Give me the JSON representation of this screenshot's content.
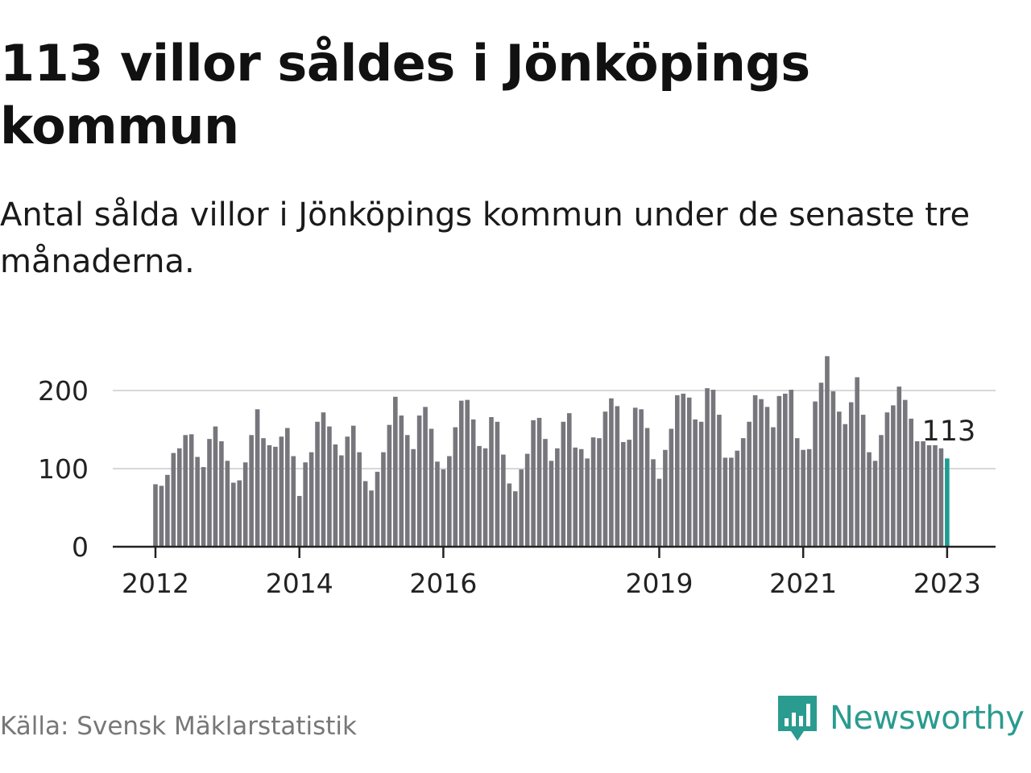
{
  "title": "113 villor såldes i Jönköpings kommun",
  "subtitle": "Antal sålda villor i Jönköpings kommun under de senaste tre månaderna.",
  "source": "Källa: Svensk Mäklarstatistik",
  "brand": {
    "name": "Newsworthy",
    "icon": "newsworthy-logo-icon",
    "color": "#2a9b8f"
  },
  "colors": {
    "bar": "#76767c",
    "highlight": "#1f9c90",
    "grid": "#d8d8d8",
    "axis": "#222222"
  },
  "chart_data": {
    "type": "bar",
    "title": "113 villor såldes i Jönköpings kommun",
    "xlabel": "",
    "ylabel": "",
    "ylim": [
      0,
      250
    ],
    "yticks": [
      0,
      100,
      200
    ],
    "xtick_labels": [
      {
        "label": "2012",
        "index": 0
      },
      {
        "label": "2014",
        "index": 24
      },
      {
        "label": "2016",
        "index": 48
      },
      {
        "label": "2019",
        "index": 84
      },
      {
        "label": "2021",
        "index": 108
      },
      {
        "label": "2023",
        "index": 132
      }
    ],
    "highlight_index": 132,
    "highlight_label": "113",
    "categories": [
      "2012-01",
      "2012-02",
      "2012-03",
      "2012-04",
      "2012-05",
      "2012-06",
      "2012-07",
      "2012-08",
      "2012-09",
      "2012-10",
      "2012-11",
      "2012-12",
      "2013-01",
      "2013-02",
      "2013-03",
      "2013-04",
      "2013-05",
      "2013-06",
      "2013-07",
      "2013-08",
      "2013-09",
      "2013-10",
      "2013-11",
      "2013-12",
      "2014-01",
      "2014-02",
      "2014-03",
      "2014-04",
      "2014-05",
      "2014-06",
      "2014-07",
      "2014-08",
      "2014-09",
      "2014-10",
      "2014-11",
      "2014-12",
      "2015-01",
      "2015-02",
      "2015-03",
      "2015-04",
      "2015-05",
      "2015-06",
      "2015-07",
      "2015-08",
      "2015-09",
      "2015-10",
      "2015-11",
      "2015-12",
      "2016-01",
      "2016-02",
      "2016-03",
      "2016-04",
      "2016-05",
      "2016-06",
      "2016-07",
      "2016-08",
      "2016-09",
      "2016-10",
      "2016-11",
      "2016-12",
      "2017-01",
      "2017-02",
      "2017-03",
      "2017-04",
      "2017-05",
      "2017-06",
      "2017-07",
      "2017-08",
      "2017-09",
      "2017-10",
      "2017-11",
      "2017-12",
      "2018-01",
      "2018-02",
      "2018-03",
      "2018-04",
      "2018-05",
      "2018-06",
      "2018-07",
      "2018-08",
      "2018-09",
      "2018-10",
      "2018-11",
      "2018-12",
      "2019-01",
      "2019-02",
      "2019-03",
      "2019-04",
      "2019-05",
      "2019-06",
      "2019-07",
      "2019-08",
      "2019-09",
      "2019-10",
      "2019-11",
      "2019-12",
      "2020-01",
      "2020-02",
      "2020-03",
      "2020-04",
      "2020-05",
      "2020-06",
      "2020-07",
      "2020-08",
      "2020-09",
      "2020-10",
      "2020-11",
      "2020-12",
      "2021-01",
      "2021-02",
      "2021-03",
      "2021-04",
      "2021-05",
      "2021-06",
      "2021-07",
      "2021-08",
      "2021-09",
      "2021-10",
      "2021-11",
      "2021-12",
      "2022-01",
      "2022-02",
      "2022-03",
      "2022-04",
      "2022-05",
      "2022-06",
      "2022-07",
      "2022-08",
      "2022-09",
      "2022-10",
      "2022-11",
      "2022-12",
      "2023-01"
    ],
    "values": [
      80,
      78,
      92,
      120,
      126,
      143,
      144,
      115,
      102,
      138,
      154,
      135,
      110,
      82,
      85,
      108,
      143,
      176,
      139,
      130,
      128,
      141,
      152,
      116,
      65,
      108,
      121,
      160,
      172,
      154,
      131,
      117,
      141,
      155,
      121,
      84,
      72,
      96,
      121,
      156,
      192,
      168,
      143,
      125,
      168,
      179,
      151,
      109,
      99,
      116,
      153,
      187,
      188,
      163,
      129,
      126,
      166,
      160,
      118,
      81,
      71,
      99,
      119,
      162,
      165,
      138,
      110,
      126,
      160,
      171,
      127,
      125,
      113,
      140,
      139,
      173,
      190,
      180,
      134,
      137,
      178,
      176,
      152,
      112,
      87,
      124,
      151,
      194,
      196,
      191,
      163,
      160,
      203,
      201,
      169,
      114,
      114,
      123,
      139,
      160,
      194,
      189,
      179,
      153,
      193,
      196,
      201,
      139,
      124,
      125,
      186,
      210,
      244,
      199,
      173,
      157,
      185,
      217,
      169,
      121,
      110,
      143,
      172,
      181,
      205,
      188,
      164,
      135,
      135,
      130,
      130,
      126,
      113
    ]
  }
}
